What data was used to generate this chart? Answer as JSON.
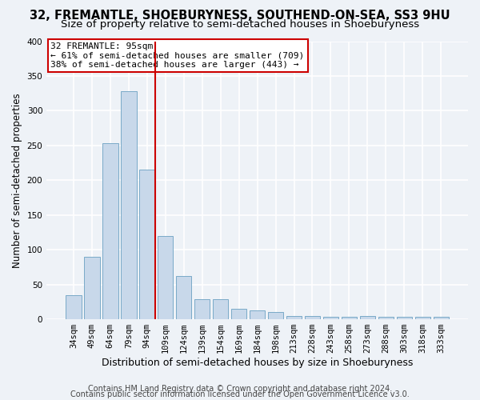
{
  "title": "32, FREMANTLE, SHOEBURYNESS, SOUTHEND-ON-SEA, SS3 9HU",
  "subtitle": "Size of property relative to semi-detached houses in Shoeburyness",
  "xlabel": "Distribution of semi-detached houses by size in Shoeburyness",
  "ylabel": "Number of semi-detached properties",
  "categories": [
    "34sqm",
    "49sqm",
    "64sqm",
    "79sqm",
    "94sqm",
    "109sqm",
    "124sqm",
    "139sqm",
    "154sqm",
    "169sqm",
    "184sqm",
    "198sqm",
    "213sqm",
    "228sqm",
    "243sqm",
    "258sqm",
    "273sqm",
    "288sqm",
    "303sqm",
    "318sqm",
    "333sqm"
  ],
  "values": [
    35,
    90,
    253,
    328,
    215,
    120,
    62,
    29,
    29,
    15,
    13,
    10,
    5,
    5,
    3,
    3,
    5,
    4,
    3,
    3,
    4
  ],
  "bar_color": "#c8d8ea",
  "bar_edge_color": "#7aaac8",
  "highlight_bar_index": 4,
  "highlight_line_color": "#cc0000",
  "annotation_line1": "32 FREMANTLE: 95sqm",
  "annotation_line2": "← 61% of semi-detached houses are smaller (709)",
  "annotation_line3": "38% of semi-detached houses are larger (443) →",
  "annotation_box_facecolor": "#ffffff",
  "annotation_box_edgecolor": "#cc0000",
  "ylim": [
    0,
    400
  ],
  "yticks": [
    0,
    50,
    100,
    150,
    200,
    250,
    300,
    350,
    400
  ],
  "footer1": "Contains HM Land Registry data © Crown copyright and database right 2024.",
  "footer2": "Contains public sector information licensed under the Open Government Licence v3.0.",
  "background_color": "#eef2f7",
  "plot_background_color": "#eef2f7",
  "grid_color": "#ffffff",
  "title_fontsize": 10.5,
  "subtitle_fontsize": 9.5,
  "ylabel_fontsize": 8.5,
  "xlabel_fontsize": 9,
  "tick_fontsize": 7.5,
  "annotation_fontsize": 8,
  "footer_fontsize": 7
}
